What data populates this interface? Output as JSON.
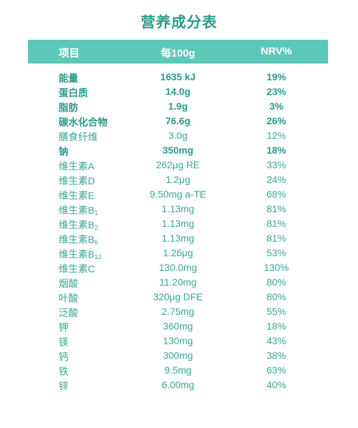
{
  "title": "营养成分表",
  "header": {
    "item": "项目",
    "per": "每100g",
    "nrv": "NRV%"
  },
  "rows": [
    {
      "name": "能量",
      "sub": "",
      "per": "1635 kJ",
      "nrv": "19%",
      "bold": true
    },
    {
      "name": "蛋白质",
      "sub": "",
      "per": "14.0g",
      "nrv": "23%",
      "bold": true
    },
    {
      "name": "脂肪",
      "sub": "",
      "per": "1.9g",
      "nrv": "3%",
      "bold": true
    },
    {
      "name": "碳水化合物",
      "sub": "",
      "per": "76.6g",
      "nrv": "26%",
      "bold": true
    },
    {
      "name": "膳食纤维",
      "sub": "",
      "per": "3.0g",
      "nrv": "12%",
      "bold": false
    },
    {
      "name": "钠",
      "sub": "",
      "per": "350mg",
      "nrv": "18%",
      "bold": true
    },
    {
      "name": "维生素A",
      "sub": "",
      "per": "262μg RE",
      "nrv": "33%",
      "bold": false
    },
    {
      "name": "维生素D",
      "sub": "",
      "per": "1.2μg",
      "nrv": "24%",
      "bold": false
    },
    {
      "name": "维生素E",
      "sub": "",
      "per": "9.50mg a-TE",
      "nrv": "68%",
      "bold": false
    },
    {
      "name": "维生素B",
      "sub": "1",
      "per": "1.13mg",
      "nrv": "81%",
      "bold": false
    },
    {
      "name": "维生素B",
      "sub": "2",
      "per": "1.13mg",
      "nrv": "81%",
      "bold": false
    },
    {
      "name": "维生素B",
      "sub": "6",
      "per": "1.13mg",
      "nrv": "81%",
      "bold": false
    },
    {
      "name": "维生素B",
      "sub": "12",
      "per": "1.26μg",
      "nrv": "53%",
      "bold": false
    },
    {
      "name": "维生素C",
      "sub": "",
      "per": "130.0mg",
      "nrv": "130%",
      "bold": false
    },
    {
      "name": "烟酸",
      "sub": "",
      "per": "11.20mg",
      "nrv": "80%",
      "bold": false
    },
    {
      "name": "叶酸",
      "sub": "",
      "per": "320μg DFE",
      "nrv": "80%",
      "bold": false
    },
    {
      "name": "泛酸",
      "sub": "",
      "per": "2.75mg",
      "nrv": "55%",
      "bold": false
    },
    {
      "name": "钾",
      "sub": "",
      "per": "360mg",
      "nrv": "18%",
      "bold": false
    },
    {
      "name": "镁",
      "sub": "",
      "per": "130mg",
      "nrv": "43%",
      "bold": false
    },
    {
      "name": "钙",
      "sub": "",
      "per": "300mg",
      "nrv": "38%",
      "bold": false
    },
    {
      "name": "铁",
      "sub": "",
      "per": "9.5mg",
      "nrv": "63%",
      "bold": false
    },
    {
      "name": "锌",
      "sub": "",
      "per": "6.00mg",
      "nrv": "40%",
      "bold": false
    }
  ]
}
